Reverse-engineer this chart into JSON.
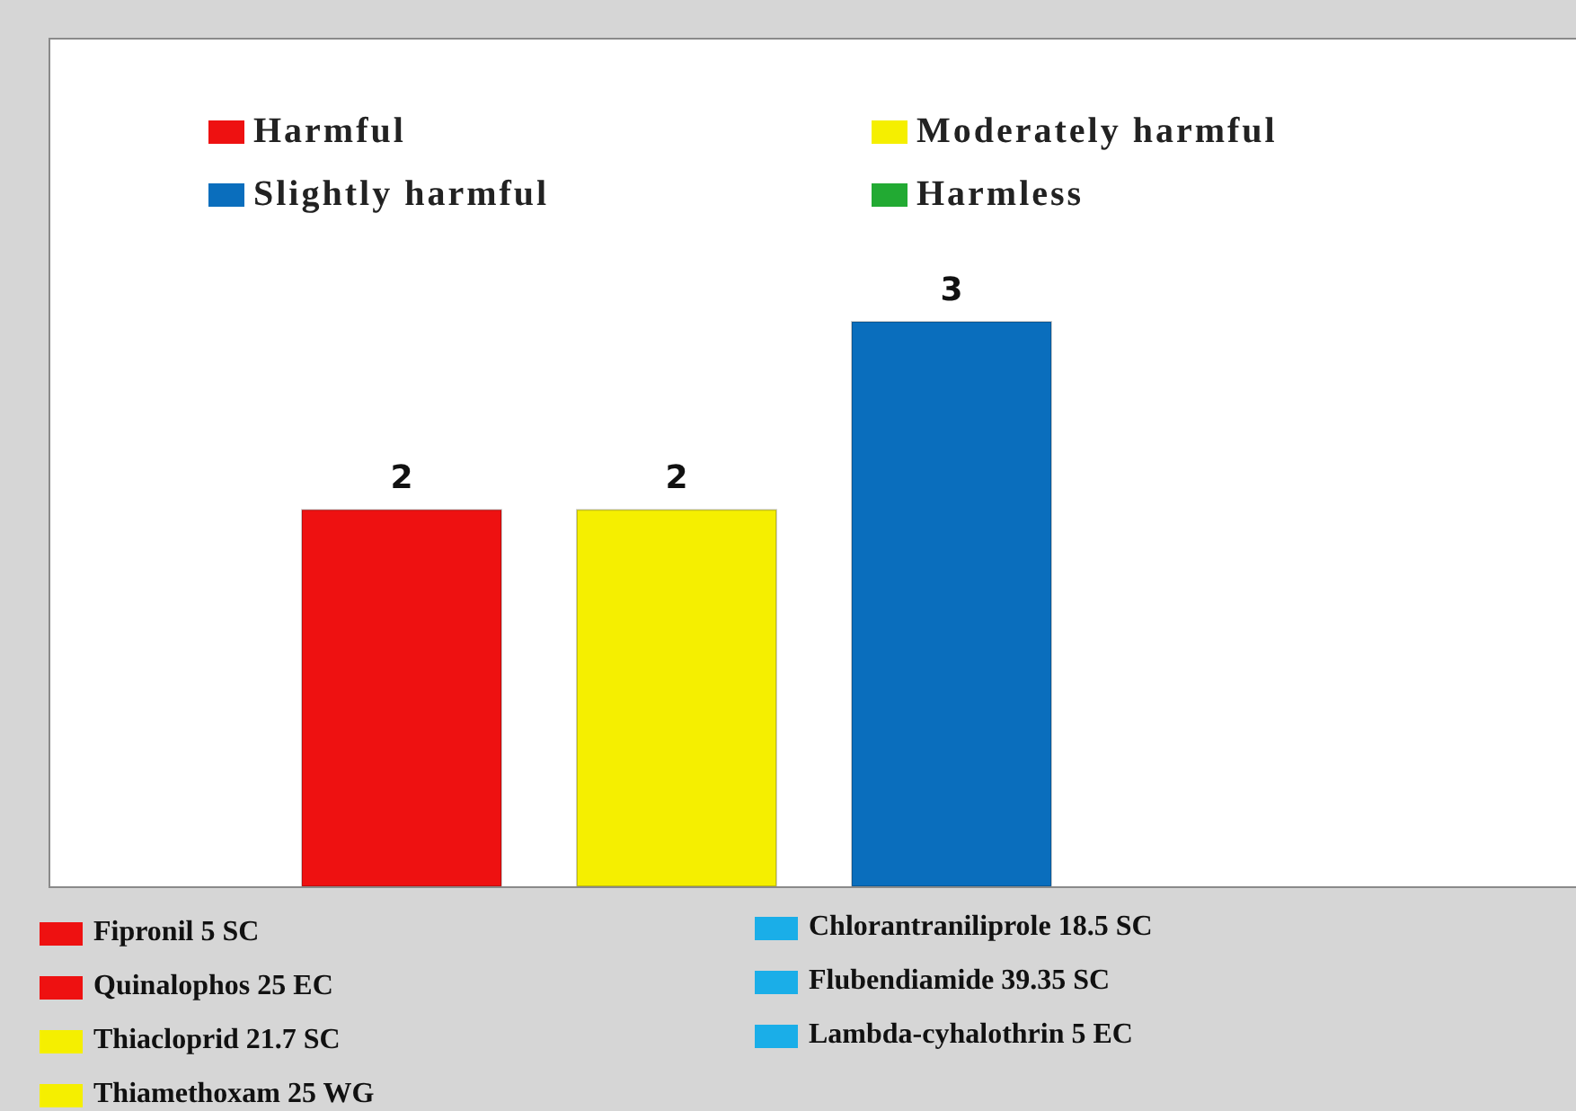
{
  "chart_data": {
    "type": "bar",
    "categories": [
      null
    ],
    "series": [
      {
        "name": "Harmful",
        "color": "#ee1111",
        "values": [
          2
        ]
      },
      {
        "name": "Moderately harmful",
        "color": "#f5ef00",
        "values": [
          2
        ]
      },
      {
        "name": "Slightly harmful",
        "color": "#0a6ebd",
        "values": [
          3
        ]
      },
      {
        "name": "Harmless",
        "color": "#22aa33",
        "values": [
          null
        ]
      }
    ],
    "data_labels": true,
    "legend": "top",
    "tick_labels": false,
    "annotations": [
      "Fipronil 5 SC",
      "Quinalophos 25 EC",
      "Thiacloprid 21.7 SC",
      "Thiamethoxam 25 WG",
      "Chlorantraniliprole 18.5 SC",
      "Flubendiamide 39.35 SC",
      "Lambda-cyhalothrin 5 EC"
    ]
  }
}
